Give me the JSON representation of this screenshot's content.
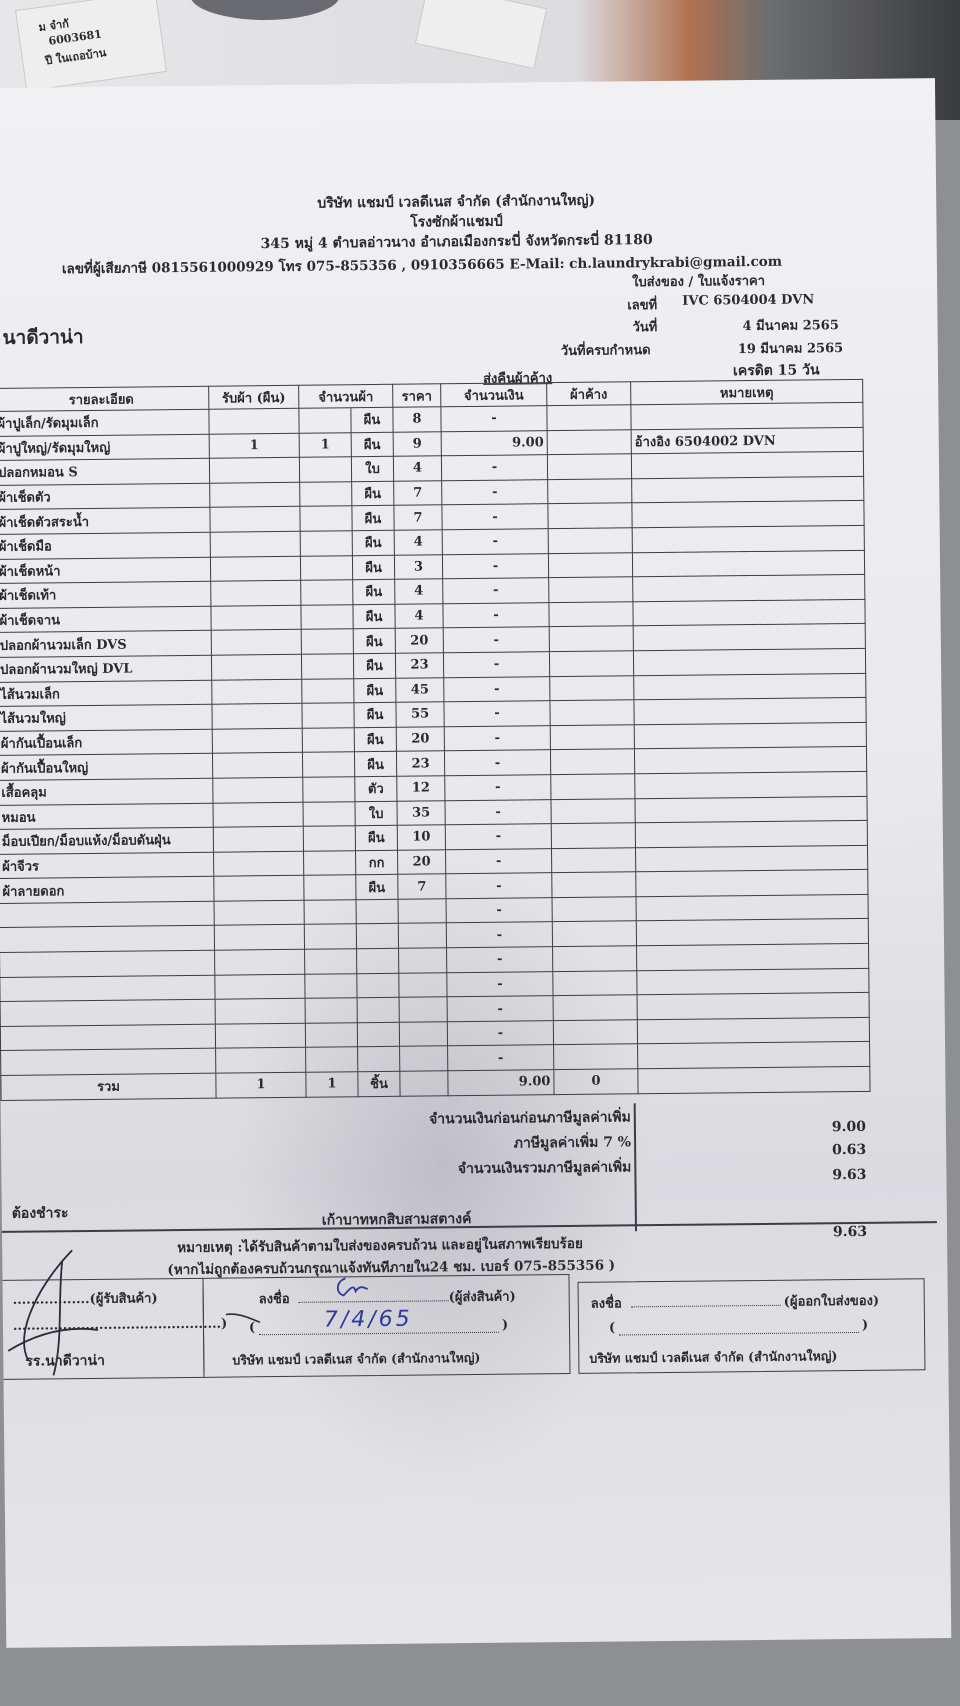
{
  "background_slip": {
    "code": "6003681",
    "lines": [
      "ม จำกั",
      "ปี ในเถอบ้าน"
    ]
  },
  "company": {
    "name": "บริษัท แชมป์ เวลดีเนส จำกัด (สำนักงานใหญ่)",
    "subtitle": "โรงซักผ้าแชมป์",
    "address": "345 หมู่ 4 ตำบลอ่าวนาง อำเภอเมืองกระบี่ จังหวัดกระบี่ 81180",
    "contact": "เลขที่ผู้เสียภาษี 0815561000929 โทร 075-855356 , 0910356665  E-Mail: ch.laundrykrabi@gmail.com"
  },
  "doc": {
    "type": "ใบส่งของ / ใบแจ้งราคา",
    "number_label": "เลขที่",
    "number": "IVC 6504004 DVN",
    "date_label": "วันที่",
    "date": "4 มีนาคม 2565",
    "due_label": "วันที่ครบกำหนด",
    "due": "19 มีนาคม 2565",
    "credit": "เครดิต 15 วัน",
    "customer": "นาดีวาน่า",
    "section": "ส่งคืนผ้าค้าง"
  },
  "table": {
    "headers": [
      "รายละเอียด",
      "รับผ้า (ผืน)",
      "จำนวนผ้า",
      "ราคา",
      "จำนวนเงิน",
      "ผ้าค้าง",
      "หมายเหตุ"
    ],
    "rows": [
      {
        "item": "ผ้าปูเล็ก/รัดมุมเล็ก",
        "received": "",
        "qty": "",
        "unit": "ผืน",
        "price": "8",
        "amount": "-",
        "pending": "",
        "note": ""
      },
      {
        "item": "ผ้าปูใหญ่/รัดมุมใหญ่",
        "received": "1",
        "qty": "1",
        "unit": "ผืน",
        "price": "9",
        "amount": "9.00",
        "pending": "",
        "note": "อ้างอิง  6504002 DVN"
      },
      {
        "item": "ปลอกหมอน S",
        "received": "",
        "qty": "",
        "unit": "ใบ",
        "price": "4",
        "amount": "-",
        "pending": "",
        "note": ""
      },
      {
        "item": "ผ้าเช็ดตัว",
        "received": "",
        "qty": "",
        "unit": "ผืน",
        "price": "7",
        "amount": "-",
        "pending": "",
        "note": ""
      },
      {
        "item": "ผ้าเช็ดตัวสระน้ำ",
        "received": "",
        "qty": "",
        "unit": "ผืน",
        "price": "7",
        "amount": "-",
        "pending": "",
        "note": ""
      },
      {
        "item": "ผ้าเช็ดมือ",
        "received": "",
        "qty": "",
        "unit": "ผืน",
        "price": "4",
        "amount": "-",
        "pending": "",
        "note": ""
      },
      {
        "item": "ผ้าเช็ดหน้า",
        "received": "",
        "qty": "",
        "unit": "ผืน",
        "price": "3",
        "amount": "-",
        "pending": "",
        "note": ""
      },
      {
        "item": "ผ้าเช็ดเท้า",
        "received": "",
        "qty": "",
        "unit": "ผืน",
        "price": "4",
        "amount": "-",
        "pending": "",
        "note": ""
      },
      {
        "item": "ผ้าเช็ดจาน",
        "received": "",
        "qty": "",
        "unit": "ผืน",
        "price": "4",
        "amount": "-",
        "pending": "",
        "note": ""
      },
      {
        "item": "ปลอกผ้านวมเล็ก DVS",
        "received": "",
        "qty": "",
        "unit": "ผืน",
        "price": "20",
        "amount": "-",
        "pending": "",
        "note": ""
      },
      {
        "item": "ปลอกผ้านวมใหญ่ DVL",
        "received": "",
        "qty": "",
        "unit": "ผืน",
        "price": "23",
        "amount": "-",
        "pending": "",
        "note": ""
      },
      {
        "item": "ไส้นวมเล็ก",
        "received": "",
        "qty": "",
        "unit": "ผืน",
        "price": "45",
        "amount": "-",
        "pending": "",
        "note": ""
      },
      {
        "item": "ไส้นวมใหญ่",
        "received": "",
        "qty": "",
        "unit": "ผืน",
        "price": "55",
        "amount": "-",
        "pending": "",
        "note": ""
      },
      {
        "item": "ผ้ากันเปื้อนเล็ก",
        "received": "",
        "qty": "",
        "unit": "ผืน",
        "price": "20",
        "amount": "-",
        "pending": "",
        "note": ""
      },
      {
        "item": "ผ้ากันเปื้อนใหญ่",
        "received": "",
        "qty": "",
        "unit": "ผืน",
        "price": "23",
        "amount": "-",
        "pending": "",
        "note": ""
      },
      {
        "item": "เสื้อคลุม",
        "received": "",
        "qty": "",
        "unit": "ตัว",
        "price": "12",
        "amount": "-",
        "pending": "",
        "note": ""
      },
      {
        "item": "หมอน",
        "received": "",
        "qty": "",
        "unit": "ใบ",
        "price": "35",
        "amount": "-",
        "pending": "",
        "note": ""
      },
      {
        "item": "ม็อบเปียก/ม็อบแห้ง/ม็อบดันฝุ่น",
        "received": "",
        "qty": "",
        "unit": "ผืน",
        "price": "10",
        "amount": "-",
        "pending": "",
        "note": ""
      },
      {
        "item": "ผ้าจีวร",
        "received": "",
        "qty": "",
        "unit": "กก",
        "price": "20",
        "amount": "-",
        "pending": "",
        "note": ""
      },
      {
        "item": "ผ้าลายดอก",
        "received": "",
        "qty": "",
        "unit": "ผืน",
        "price": "7",
        "amount": "-",
        "pending": "",
        "note": ""
      },
      {
        "item": "",
        "received": "",
        "qty": "",
        "unit": "",
        "price": "",
        "amount": "-",
        "pending": "",
        "note": ""
      },
      {
        "item": "",
        "received": "",
        "qty": "",
        "unit": "",
        "price": "",
        "amount": "-",
        "pending": "",
        "note": ""
      },
      {
        "item": "",
        "received": "",
        "qty": "",
        "unit": "",
        "price": "",
        "amount": "-",
        "pending": "",
        "note": ""
      },
      {
        "item": "",
        "received": "",
        "qty": "",
        "unit": "",
        "price": "",
        "amount": "-",
        "pending": "",
        "note": ""
      },
      {
        "item": "",
        "received": "",
        "qty": "",
        "unit": "",
        "price": "",
        "amount": "-",
        "pending": "",
        "note": ""
      },
      {
        "item": "",
        "received": "",
        "qty": "",
        "unit": "",
        "price": "",
        "amount": "-",
        "pending": "",
        "note": ""
      },
      {
        "item": "",
        "received": "",
        "qty": "",
        "unit": "",
        "price": "",
        "amount": "-",
        "pending": "",
        "note": ""
      }
    ],
    "total": {
      "label": "รวม",
      "received": "1",
      "qty": "1",
      "unit": "ชิ้น",
      "amount": "9.00",
      "pending": "0"
    }
  },
  "summary": {
    "subtotal_label": "จำนวนเงินก่อนก่อนภาษีมูลค่าเพิ่ม",
    "subtotal": "9.00",
    "vat_label": "ภาษีมูลค่าเพิ่ม 7 %",
    "vat": "0.63",
    "grand_label": "จำนวนเงินรวมภาษีมูลค่าเพิ่ม",
    "grand": "9.63",
    "payable_label": "ต้องชำระ",
    "payable": "9.63",
    "amount_words": "เก้าบาทหกสิบสามสตางค์"
  },
  "remarks": {
    "line1": "หมายเหตุ :ได้รับสินค้าตามใบส่งของครบถ้วน และอยู่ในสภาพเรียบร้อย",
    "line2": "(หากไม่ถูกต้องครบถ้วนกรุณาแจ้งทันทีภายใน24 ชม.  เบอร์ 075-855356 )"
  },
  "signatures": {
    "receiver_label": ".................(ผู้รับสินค้า)",
    "receiver_bracket": "..............................................)",
    "receiver_company": "รร.นาดีวาน่า",
    "sender_sign_label": "ลงชื่อ",
    "sender_role": "(ผู้ส่งสินค้า)",
    "sender_date": "7/4/65",
    "sender_company": "บริษัท แชมป์ เวลดีเนส จำกัด (สำนักงานใหญ่)",
    "issuer_sign_label": "ลงชื่อ",
    "issuer_role": "(ผู้ออกใบส่งของ)",
    "issuer_company": "บริษัท แชมป์ เวลดีเนส จำกัด (สำนักงานใหญ่)"
  }
}
